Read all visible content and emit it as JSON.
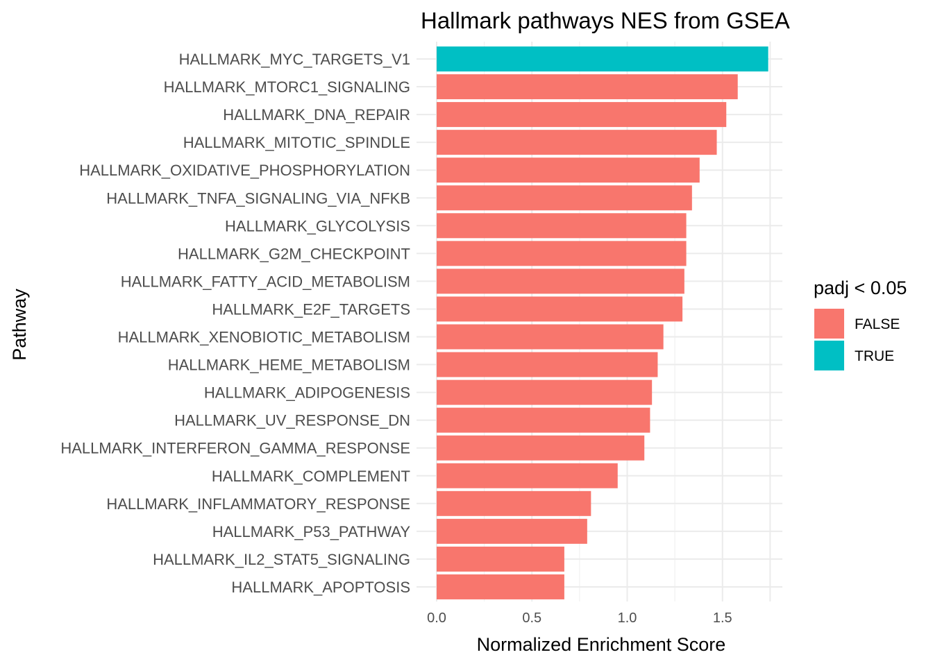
{
  "chart_data": {
    "type": "bar",
    "orientation": "horizontal",
    "title": "Hallmark pathways NES from GSEA",
    "xlabel": "Normalized Enrichment Score",
    "ylabel": "Pathway",
    "xlim": [
      0,
      1.8
    ],
    "xticks": [
      {
        "value": 0,
        "label": "0.0"
      },
      {
        "value": 0.5,
        "label": "0.5"
      },
      {
        "value": 1.0,
        "label": "1.0"
      },
      {
        "value": 1.5,
        "label": "1.5"
      }
    ],
    "grid": true,
    "legend": {
      "title": "padj < 0.05",
      "placement": "right",
      "entries": [
        {
          "label": "FALSE",
          "color": "#F8766D"
        },
        {
          "label": "TRUE",
          "color": "#00BFC4"
        }
      ]
    },
    "bars": [
      {
        "category": "HALLMARK_MYC_TARGETS_V1",
        "value": 1.74,
        "group": "TRUE"
      },
      {
        "category": "HALLMARK_MTORC1_SIGNALING",
        "value": 1.58,
        "group": "FALSE"
      },
      {
        "category": "HALLMARK_DNA_REPAIR",
        "value": 1.52,
        "group": "FALSE"
      },
      {
        "category": "HALLMARK_MITOTIC_SPINDLE",
        "value": 1.47,
        "group": "FALSE"
      },
      {
        "category": "HALLMARK_OXIDATIVE_PHOSPHORYLATION",
        "value": 1.38,
        "group": "FALSE"
      },
      {
        "category": "HALLMARK_TNFA_SIGNALING_VIA_NFKB",
        "value": 1.34,
        "group": "FALSE"
      },
      {
        "category": "HALLMARK_GLYCOLYSIS",
        "value": 1.31,
        "group": "FALSE"
      },
      {
        "category": "HALLMARK_G2M_CHECKPOINT",
        "value": 1.31,
        "group": "FALSE"
      },
      {
        "category": "HALLMARK_FATTY_ACID_METABOLISM",
        "value": 1.3,
        "group": "FALSE"
      },
      {
        "category": "HALLMARK_E2F_TARGETS",
        "value": 1.29,
        "group": "FALSE"
      },
      {
        "category": "HALLMARK_XENOBIOTIC_METABOLISM",
        "value": 1.19,
        "group": "FALSE"
      },
      {
        "category": "HALLMARK_HEME_METABOLISM",
        "value": 1.16,
        "group": "FALSE"
      },
      {
        "category": "HALLMARK_ADIPOGENESIS",
        "value": 1.13,
        "group": "FALSE"
      },
      {
        "category": "HALLMARK_UV_RESPONSE_DN",
        "value": 1.12,
        "group": "FALSE"
      },
      {
        "category": "HALLMARK_INTERFERON_GAMMA_RESPONSE",
        "value": 1.09,
        "group": "FALSE"
      },
      {
        "category": "HALLMARK_COMPLEMENT",
        "value": 0.95,
        "group": "FALSE"
      },
      {
        "category": "HALLMARK_INFLAMMATORY_RESPONSE",
        "value": 0.81,
        "group": "FALSE"
      },
      {
        "category": "HALLMARK_P53_PATHWAY",
        "value": 0.79,
        "group": "FALSE"
      },
      {
        "category": "HALLMARK_IL2_STAT5_SIGNALING",
        "value": 0.67,
        "group": "FALSE"
      },
      {
        "category": "HALLMARK_APOPTOSIS",
        "value": 0.67,
        "group": "FALSE"
      }
    ]
  }
}
